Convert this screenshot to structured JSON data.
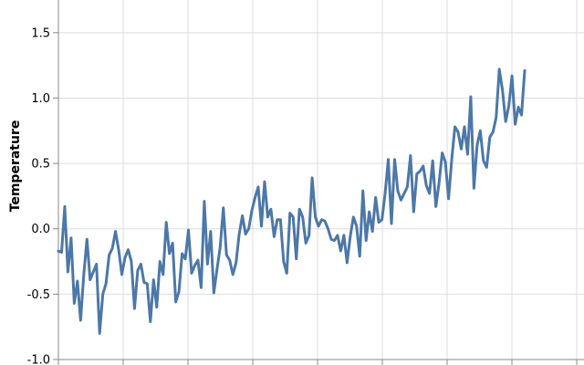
{
  "chart_data": {
    "type": "line",
    "ylabel": "Temperature",
    "xlabel": "",
    "ylim": [
      -1.0,
      1.75
    ],
    "yticks": [
      "-1.0",
      "-0.5",
      "0.0",
      "0.5",
      "1.0",
      "1.5"
    ],
    "x_gridlines": 8,
    "grid": true,
    "color": "#4c78a8",
    "series": [
      {
        "values": [
          -0.17,
          -0.18,
          0.17,
          -0.33,
          -0.07,
          -0.57,
          -0.4,
          -0.7,
          -0.35,
          -0.08,
          -0.39,
          -0.33,
          -0.27,
          -0.8,
          -0.5,
          -0.42,
          -0.2,
          -0.15,
          -0.02,
          -0.16,
          -0.35,
          -0.22,
          -0.16,
          -0.25,
          -0.61,
          -0.32,
          -0.27,
          -0.41,
          -0.42,
          -0.71,
          -0.39,
          -0.6,
          -0.25,
          -0.35,
          0.05,
          -0.19,
          -0.11,
          -0.56,
          -0.48,
          -0.19,
          -0.23,
          -0.01,
          -0.34,
          -0.28,
          -0.24,
          -0.45,
          0.21,
          -0.27,
          -0.02,
          -0.49,
          -0.31,
          -0.14,
          0.16,
          -0.2,
          -0.24,
          -0.35,
          -0.26,
          -0.04,
          0.1,
          -0.04,
          0.0,
          0.14,
          0.24,
          0.32,
          0.02,
          0.36,
          0.09,
          0.15,
          -0.06,
          0.07,
          0.07,
          -0.25,
          -0.34,
          0.12,
          0.09,
          -0.23,
          0.15,
          0.09,
          -0.11,
          -0.05,
          0.39,
          0.09,
          0.02,
          0.07,
          0.06,
          0.0,
          -0.08,
          -0.09,
          -0.05,
          -0.17,
          -0.05,
          -0.26,
          -0.06,
          0.09,
          0.02,
          -0.21,
          0.29,
          -0.09,
          0.13,
          -0.02,
          0.24,
          0.05,
          0.07,
          0.27,
          0.53,
          0.04,
          0.53,
          0.29,
          0.22,
          0.27,
          0.32,
          0.56,
          0.13,
          0.42,
          0.44,
          0.48,
          0.33,
          0.27,
          0.52,
          0.17,
          0.35,
          0.58,
          0.51,
          0.23,
          0.53,
          0.78,
          0.74,
          0.61,
          0.78,
          0.57,
          1.01,
          0.31,
          0.64,
          0.75,
          0.52,
          0.47,
          0.7,
          0.74,
          0.85,
          1.22,
          1.06,
          0.82,
          0.94,
          1.17,
          0.8,
          0.93,
          0.87,
          1.21
        ]
      }
    ]
  }
}
